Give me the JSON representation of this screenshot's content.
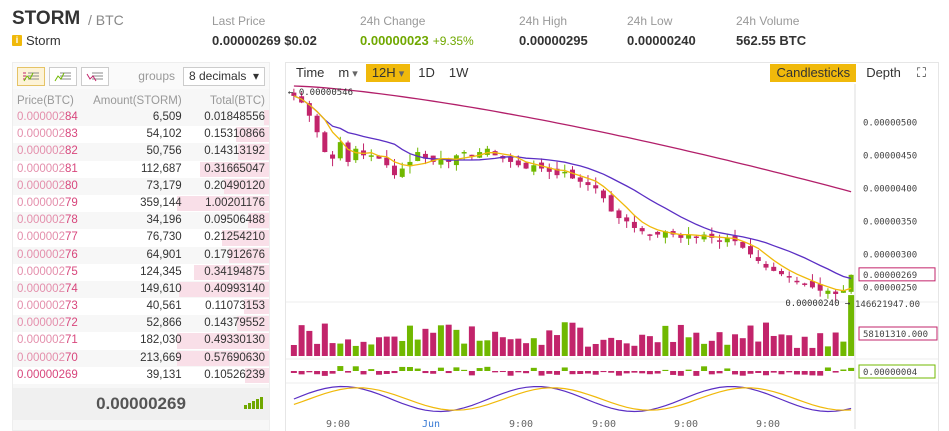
{
  "header": {
    "symbol": "STORM",
    "pair": "/ BTC",
    "coin_name": "Storm",
    "stats": [
      {
        "label": "Last Price",
        "value": "0.00000269 $0.02",
        "extra": ""
      },
      {
        "label": "24h Change",
        "value": "0.00000023",
        "extra": "+9.35%"
      },
      {
        "label": "24h High",
        "value": "0.00000295",
        "extra": ""
      },
      {
        "label": "24h Low",
        "value": "0.00000240",
        "extra": ""
      },
      {
        "label": "24h Volume",
        "value": "562.55 BTC",
        "extra": ""
      }
    ]
  },
  "orderbook": {
    "groups_label": "groups",
    "decimals": "8 decimals",
    "headers": [
      "Price(BTC)",
      "Amount(STORM)",
      "Total(BTC)"
    ],
    "asks": [
      {
        "price_dim": "0.000002",
        "price_hi": "84",
        "amount": "6,509",
        "total": "0.01848556",
        "depth": 0.05
      },
      {
        "price_dim": "0.000002",
        "price_hi": "83",
        "amount": "54,102",
        "total": "0.15310866",
        "depth": 0.36
      },
      {
        "price_dim": "0.000002",
        "price_hi": "82",
        "amount": "50,756",
        "total": "0.14313192",
        "depth": 0.34
      },
      {
        "price_dim": "0.000002",
        "price_hi": "81",
        "amount": "112,687",
        "total": "0.31665047",
        "depth": 0.75
      },
      {
        "price_dim": "0.000002",
        "price_hi": "80",
        "amount": "73,179",
        "total": "0.20490120",
        "depth": 0.49
      },
      {
        "price_dim": "0.000002",
        "price_hi": "79",
        "amount": "359,144",
        "total": "1.00201176",
        "depth": 1.0
      },
      {
        "price_dim": "0.000002",
        "price_hi": "78",
        "amount": "34,196",
        "total": "0.09506488",
        "depth": 0.23
      },
      {
        "price_dim": "0.000002",
        "price_hi": "77",
        "amount": "76,730",
        "total": "0.21254210",
        "depth": 0.51
      },
      {
        "price_dim": "0.000002",
        "price_hi": "76",
        "amount": "64,901",
        "total": "0.17912676",
        "depth": 0.43
      },
      {
        "price_dim": "0.000002",
        "price_hi": "75",
        "amount": "124,345",
        "total": "0.34194875",
        "depth": 0.82
      },
      {
        "price_dim": "0.000002",
        "price_hi": "74",
        "amount": "149,610",
        "total": "0.40993140",
        "depth": 0.98
      },
      {
        "price_dim": "0.000002",
        "price_hi": "73",
        "amount": "40,561",
        "total": "0.11073153",
        "depth": 0.27
      },
      {
        "price_dim": "0.000002",
        "price_hi": "72",
        "amount": "52,866",
        "total": "0.14379552",
        "depth": 0.35
      },
      {
        "price_dim": "0.000002",
        "price_hi": "71",
        "amount": "182,030",
        "total": "0.49330130",
        "depth": 1.0
      },
      {
        "price_dim": "0.000002",
        "price_hi": "70",
        "amount": "213,669",
        "total": "0.57690630",
        "depth": 1.0
      },
      {
        "price_dim": "",
        "price_hi": "0.00000269",
        "amount": "39,131",
        "total": "0.10526239",
        "depth": 0.26
      }
    ],
    "last_price": "0.00000269"
  },
  "chart": {
    "toolbar": [
      "Time",
      "m",
      "12H",
      "1D",
      "1W"
    ],
    "active_interval": "12H",
    "view_modes": [
      "Candlesticks",
      "Depth"
    ],
    "active_view": "Candlesticks",
    "price_labels": [
      "0.00000500",
      "0.00000450",
      "0.00000400",
      "0.00000350",
      "0.00000300",
      "0.00000269",
      "0.00000250"
    ],
    "high_marker": "0.00000546",
    "low_marker": "0.00000240",
    "volume_labels": [
      "146621947.00",
      "58101310.000"
    ],
    "macd_label": "0.00000004",
    "time_labels": [
      "9:00",
      "Jun",
      "9:00",
      "9:00",
      "9:00",
      "9:00"
    ],
    "colors": {
      "up": "#70b800",
      "down": "#c2246b",
      "ma_short": "#f0b90b",
      "ma_mid": "#5b2fc4",
      "ma_long": "#b21f6a"
    }
  },
  "chart_data": {
    "type": "candlestick",
    "ylim": [
      2.4e-06,
      5.5e-06
    ],
    "closes": [
      5.4,
      5.3,
      5.1,
      4.85,
      4.55,
      4.45,
      4.7,
      4.4,
      4.6,
      4.5,
      4.5,
      4.45,
      4.35,
      4.2,
      4.3,
      4.4,
      4.55,
      4.45,
      4.4,
      4.45,
      4.4,
      4.5,
      4.55,
      4.5,
      4.55,
      4.6,
      4.5,
      4.45,
      4.4,
      4.35,
      4.3,
      4.35,
      4.3,
      4.25,
      4.2,
      4.25,
      4.15,
      4.1,
      4.05,
      4.0,
      3.85,
      3.65,
      3.55,
      3.5,
      3.4,
      3.35,
      3.3,
      3.3,
      3.35,
      3.3,
      3.25,
      3.3,
      3.25,
      3.3,
      3.25,
      3.2,
      3.25,
      3.2,
      3.1,
      3.0,
      2.9,
      2.8,
      2.75,
      2.7,
      2.65,
      2.6,
      2.55,
      2.5,
      2.45,
      2.45,
      2.4,
      2.45,
      2.69
    ]
  }
}
